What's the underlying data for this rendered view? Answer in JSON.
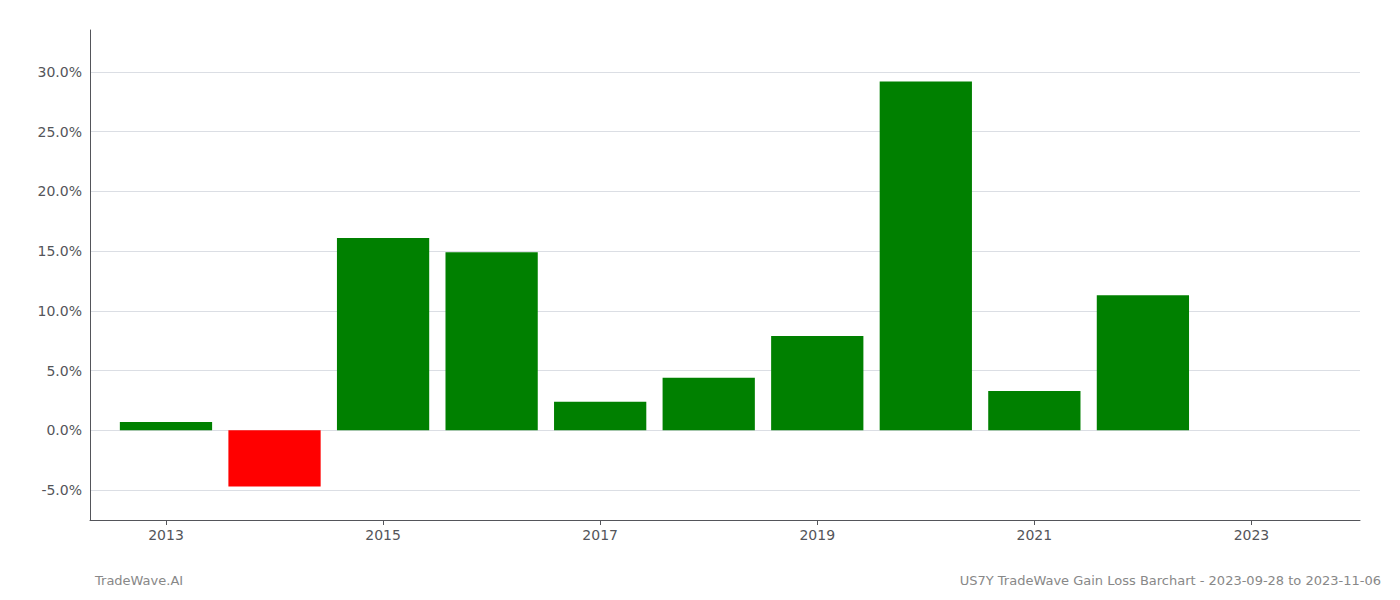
{
  "chart_data": {
    "type": "bar",
    "title": "US7Y TradeWave Gain Loss Barchart - 2023-09-28 to 2023-11-06",
    "annotations": [
      "TradeWave.AI"
    ],
    "x": [
      2013,
      2014,
      2015,
      2016,
      2017,
      2018,
      2019,
      2020,
      2021,
      2022,
      2023
    ],
    "values": [
      0.007,
      -0.047,
      0.161,
      0.149,
      0.024,
      0.044,
      0.079,
      0.292,
      0.033,
      0.113,
      null
    ],
    "colors": [
      "#008000",
      "#ff0000",
      "#008000",
      "#008000",
      "#008000",
      "#008000",
      "#008000",
      "#008000",
      "#008000",
      "#008000",
      "#008000"
    ],
    "xlim": [
      2012.3,
      2024.0
    ],
    "xticks": [
      2013,
      2015,
      2017,
      2019,
      2021,
      2023
    ],
    "ylim": [
      -0.075,
      0.335
    ],
    "yticks": [
      {
        "value": -0.05,
        "label": "-5.0%"
      },
      {
        "value": 0.0,
        "label": "0.0%"
      },
      {
        "value": 0.05,
        "label": "5.0%"
      },
      {
        "value": 0.1,
        "label": "10.0%"
      },
      {
        "value": 0.15,
        "label": "15.0%"
      },
      {
        "value": 0.2,
        "label": "20.0%"
      },
      {
        "value": 0.25,
        "label": "25.0%"
      },
      {
        "value": 0.3,
        "label": "30.0%"
      }
    ],
    "grid": true
  }
}
